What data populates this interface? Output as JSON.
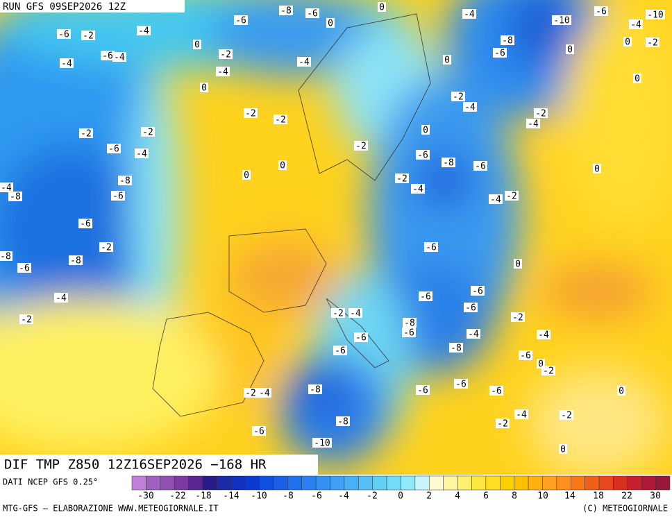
{
  "header": {
    "run": "RUN GFS 09SEP2026 12Z"
  },
  "map": {
    "title": "DIF TMP Z850 12Z16SEP2026 −168 HR",
    "contour_labels": [
      -6,
      -8,
      -6,
      0,
      0,
      -4,
      -6,
      -10,
      -10,
      -4,
      -6,
      -2,
      -4,
      -8,
      -6,
      0,
      0,
      -2,
      0,
      -2,
      -6,
      -4,
      -4,
      -4,
      0,
      -4,
      0,
      0,
      -2,
      -4,
      -2,
      -2,
      -2,
      -4,
      -2,
      -2,
      0,
      -6,
      -4,
      -2,
      -6,
      0,
      -8,
      -6,
      0,
      0,
      -8,
      -2,
      -4,
      -4,
      -8,
      -6,
      -4,
      -2,
      -6,
      -2,
      -6,
      -8,
      -8,
      0,
      -6,
      -6,
      -4,
      -6,
      -6,
      -2,
      -2,
      -4,
      -2,
      -8,
      -6,
      -4,
      -4,
      -6,
      -8,
      -6,
      -6,
      0,
      -2,
      -6,
      -6,
      -6,
      -8,
      -2,
      -4,
      0,
      -4,
      -2,
      -2,
      -8,
      -6,
      -10,
      0
    ]
  },
  "colorbar": {
    "source": "DATI NCEP GFS 0.25°",
    "ticks": [
      -30,
      -22,
      -18,
      -14,
      -10,
      -8,
      -6,
      -4,
      -2,
      0,
      2,
      4,
      6,
      8,
      10,
      14,
      18,
      22,
      30
    ],
    "colors": [
      "#c080d8",
      "#a060c0",
      "#9050b0",
      "#7a3aa0",
      "#5a2890",
      "#2a1a8a",
      "#1a2aa8",
      "#1030c0",
      "#0a3ad0",
      "#0f4fe0",
      "#1a5fe8",
      "#2070ee",
      "#2a80f0",
      "#3590f2",
      "#40a0f4",
      "#4ab0f5",
      "#55c0f5",
      "#60d0f5",
      "#70dcf5",
      "#90e8f8",
      "#c8f5fa",
      "#fffbd0",
      "#fff5a0",
      "#fff070",
      "#ffe840",
      "#ffdd20",
      "#ffd000",
      "#ffc000",
      "#ffb010",
      "#ffa020",
      "#ff9020",
      "#f87818",
      "#f06018",
      "#e84820",
      "#d83020",
      "#c82030",
      "#b01838",
      "#981838"
    ]
  },
  "footer": {
    "credit": "MTG-GFS — ELABORAZIONE WWW.METEOGIORNALE.IT",
    "copyright": "(C) METEOGIORNALE"
  }
}
